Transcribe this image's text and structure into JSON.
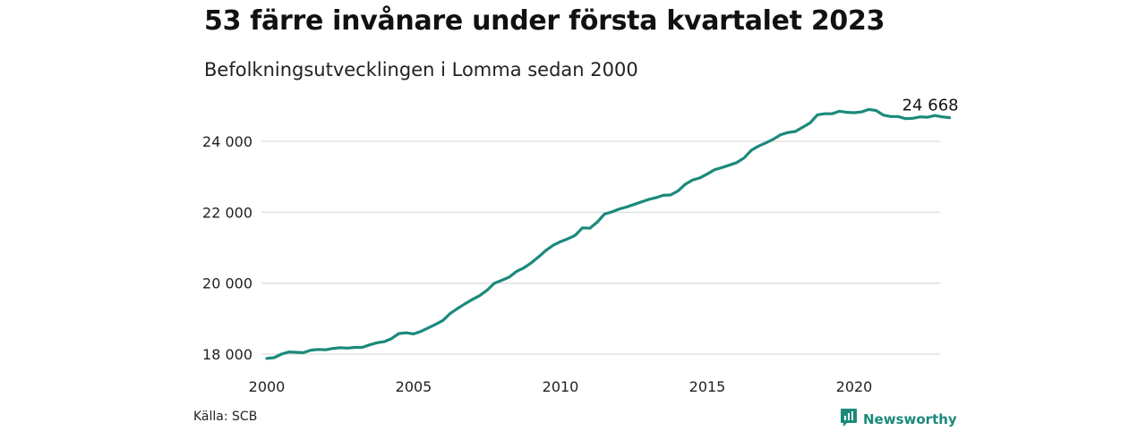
{
  "title": "53 färre invånare under första kvartalet 2023",
  "subtitle": "Befolkningsutvecklingen i Lomma sedan 2000",
  "source": "Källa: SCB",
  "brand": {
    "name": "Newsworthy",
    "icon": "newsworthy-logo-icon"
  },
  "colors": {
    "line": "#1b8a7a",
    "grid": "#dddddd",
    "text": "#111111"
  },
  "chart_data": {
    "type": "line",
    "title": "53 färre invånare under första kvartalet 2023",
    "subtitle": "Befolkningsutvecklingen i Lomma sedan 2000",
    "xlabel": "",
    "ylabel": "",
    "xlim": [
      2000,
      2023.75
    ],
    "ylim": [
      17800,
      25150
    ],
    "grid": true,
    "x_ticks": [
      2000,
      2005,
      2010,
      2015,
      2020
    ],
    "x_tick_labels": [
      "2000",
      "2005",
      "2010",
      "2015",
      "2020"
    ],
    "y_ticks": [
      18000,
      20000,
      22000,
      24000
    ],
    "y_tick_labels": [
      "18 000",
      "20 000",
      "22 000",
      "24 000"
    ],
    "end_label": "24 668",
    "series": [
      {
        "x": [
          2000.0,
          2000.25,
          2000.5,
          2000.75,
          2001.0,
          2001.25,
          2001.5,
          2001.75,
          2002.0,
          2002.25,
          2002.5,
          2002.75,
          2003.0,
          2003.25,
          2003.5,
          2003.75,
          2004.0,
          2004.25,
          2004.5,
          2004.75,
          2005.0,
          2005.25,
          2005.5,
          2005.75,
          2006.0,
          2006.25,
          2006.5,
          2006.75,
          2007.0,
          2007.25,
          2007.5,
          2007.75,
          2008.0,
          2008.25,
          2008.5,
          2008.75,
          2009.0,
          2009.25,
          2009.5,
          2009.75,
          2010.0,
          2010.25,
          2010.5,
          2010.75,
          2011.0,
          2011.25,
          2011.5,
          2011.75,
          2012.0,
          2012.25,
          2012.5,
          2012.75,
          2013.0,
          2013.25,
          2013.5,
          2013.75,
          2014.0,
          2014.25,
          2014.5,
          2014.75,
          2015.0,
          2015.25,
          2015.5,
          2015.75,
          2016.0,
          2016.25,
          2016.5,
          2016.75,
          2017.0,
          2017.25,
          2017.5,
          2017.75,
          2018.0,
          2018.25,
          2018.5,
          2018.75,
          2019.0,
          2019.25,
          2019.5,
          2019.75,
          2020.0,
          2020.25,
          2020.5,
          2020.75,
          2021.0,
          2021.25,
          2021.5,
          2021.75,
          2022.0,
          2022.25,
          2022.5,
          2022.75,
          2023.0,
          2023.25
        ],
        "values": [
          17880,
          17900,
          18000,
          18060,
          18050,
          18040,
          18110,
          18130,
          18120,
          18160,
          18180,
          18170,
          18190,
          18190,
          18260,
          18320,
          18350,
          18440,
          18580,
          18600,
          18570,
          18640,
          18740,
          18840,
          18950,
          19150,
          19290,
          19420,
          19540,
          19650,
          19800,
          20000,
          20080,
          20170,
          20330,
          20430,
          20570,
          20740,
          20920,
          21070,
          21170,
          21250,
          21350,
          21560,
          21550,
          21720,
          21950,
          22010,
          22090,
          22150,
          22220,
          22290,
          22360,
          22410,
          22480,
          22490,
          22600,
          22790,
          22910,
          22970,
          23080,
          23200,
          23260,
          23330,
          23400,
          23530,
          23750,
          23870,
          23960,
          24060,
          24190,
          24250,
          24280,
          24400,
          24520,
          24750,
          24780,
          24780,
          24850,
          24820,
          24810,
          24830,
          24900,
          24870,
          24740,
          24700,
          24700,
          24640,
          24650,
          24690,
          24680,
          24730,
          24690,
          24668
        ]
      }
    ]
  }
}
